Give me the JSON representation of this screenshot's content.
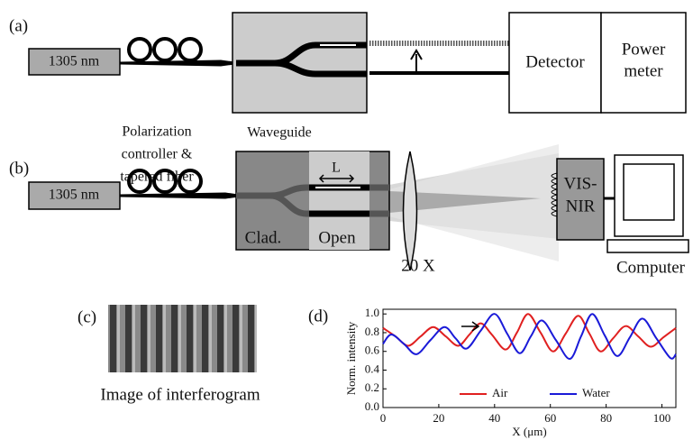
{
  "panel_a": {
    "label": "(a)",
    "source": "1305 nm",
    "controller": [
      "Polarization",
      "controller &",
      "tapered fiber"
    ],
    "waveguide": "Waveguide",
    "detector": "Detector",
    "meter": [
      "Power",
      "meter"
    ]
  },
  "panel_b": {
    "label": "(b)",
    "source": "1305 nm",
    "length": "L",
    "clad": "Clad.",
    "open": "Open",
    "objective": "20 X",
    "camera": [
      "VIS-",
      "NIR"
    ],
    "computer": "Computer"
  },
  "panel_c": {
    "label": "(c)",
    "caption": "Image of interferogram"
  },
  "panel_d": {
    "label": "(d)",
    "chart": {
      "type": "line",
      "xlabel": "X (μm)",
      "ylabel": "Norm. intensity",
      "xlim": [
        0,
        105
      ],
      "xticks": [
        0,
        20,
        40,
        60,
        80,
        100
      ],
      "ylim": [
        0,
        1.05
      ],
      "yticks": [
        {
          "value": 0,
          "label": "0.0"
        },
        {
          "value": 0.2,
          "label": "0.2"
        },
        {
          "value": 0.4,
          "label": "0.4"
        },
        {
          "value": 0.6,
          "label": "0.6"
        },
        {
          "value": 0.8,
          "label": "0.8"
        },
        {
          "value": 1,
          "label": "1.0"
        }
      ],
      "series": [
        {
          "name": "Air",
          "color": "#e02020",
          "x": [
            0,
            4.5,
            9,
            13.5,
            18,
            22.5,
            27,
            31,
            35,
            39,
            44,
            48,
            52,
            56.5,
            61,
            65.5,
            70,
            74,
            78,
            82.5,
            87,
            91.5,
            96,
            100.5,
            105
          ],
          "values": [
            0.85,
            0.76,
            0.66,
            0.76,
            0.86,
            0.76,
            0.66,
            0.78,
            0.9,
            0.78,
            0.62,
            0.8,
            1.0,
            0.8,
            0.6,
            0.79,
            0.98,
            0.79,
            0.6,
            0.74,
            0.87,
            0.76,
            0.65,
            0.75,
            0.85
          ]
        },
        {
          "name": "Water",
          "color": "#1a1ad8",
          "x": [
            0,
            3,
            7.5,
            12,
            17,
            22,
            26,
            30,
            35,
            40,
            44.5,
            49,
            53,
            57,
            62,
            67,
            71,
            75,
            79.5,
            84,
            88.5,
            93,
            98,
            103,
            105
          ],
          "values": [
            0.68,
            0.78,
            0.68,
            0.57,
            0.72,
            0.86,
            0.74,
            0.63,
            0.82,
            1.0,
            0.79,
            0.58,
            0.76,
            0.93,
            0.72,
            0.52,
            0.76,
            1.0,
            0.77,
            0.55,
            0.75,
            0.95,
            0.74,
            0.53,
            0.57
          ]
        }
      ]
    }
  }
}
